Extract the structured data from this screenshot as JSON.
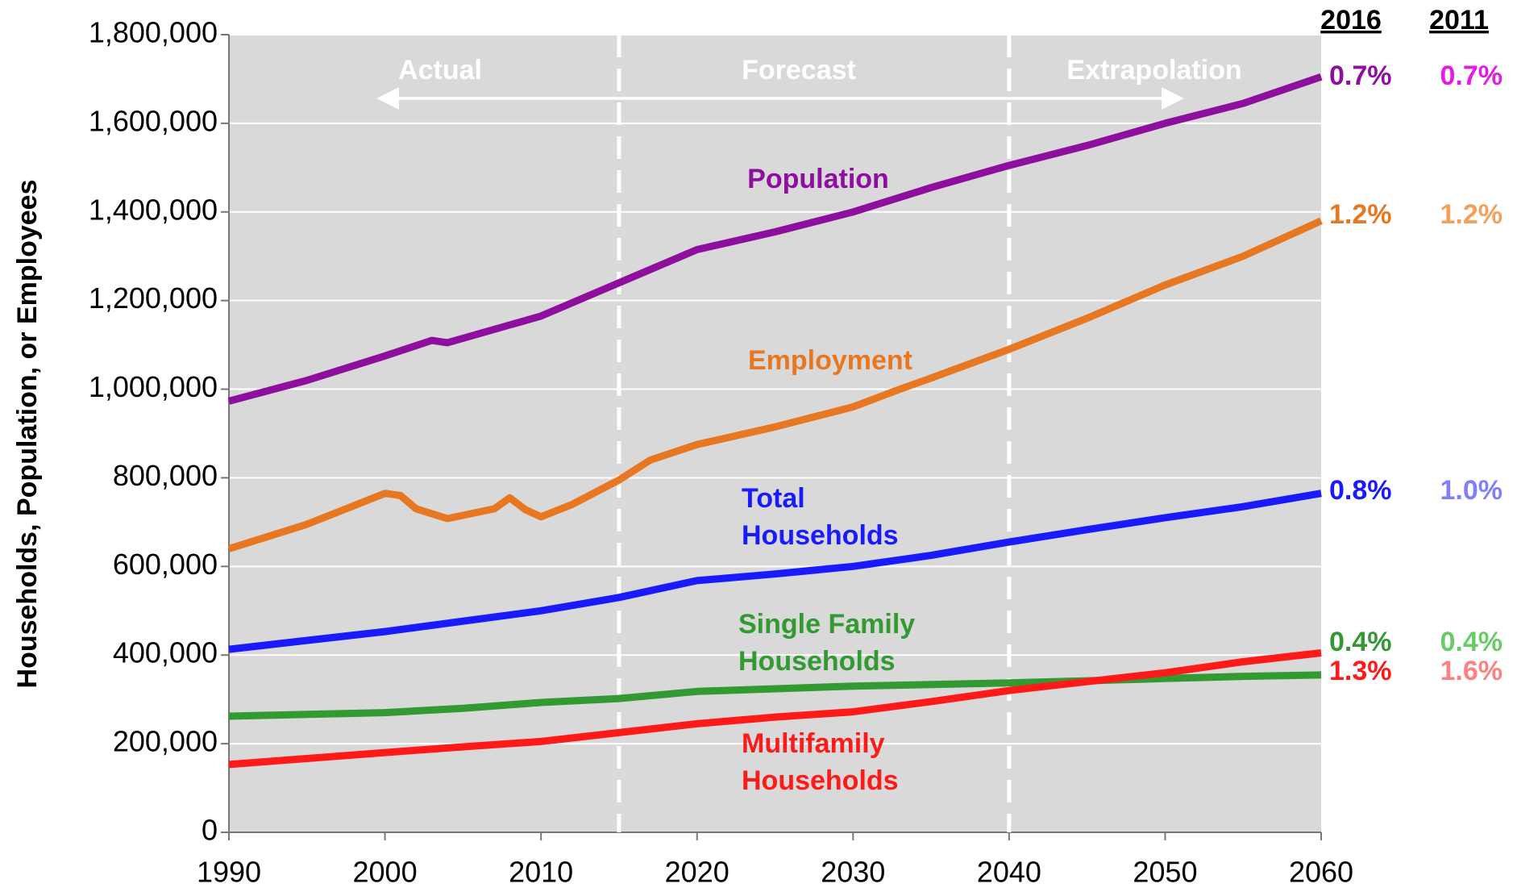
{
  "chart_data": {
    "type": "line",
    "ylabel": "Households, Population, or Employees",
    "xlim": [
      1990,
      2060
    ],
    "xticks": [
      1990,
      2000,
      2010,
      2020,
      2030,
      2040,
      2050,
      2060
    ],
    "ylim": [
      0,
      1800000
    ],
    "yticks": [
      {
        "value": 0,
        "label": "0"
      },
      {
        "value": 200000,
        "label": "200,000"
      },
      {
        "value": 400000,
        "label": "400,000"
      },
      {
        "value": 600000,
        "label": "600,000"
      },
      {
        "value": 800000,
        "label": "800,000"
      },
      {
        "value": 1000000,
        "label": "1,000,000"
      },
      {
        "value": 1200000,
        "label": "1,200,000"
      },
      {
        "value": 1400000,
        "label": "1,400,000"
      },
      {
        "value": 1600000,
        "label": "1,600,000"
      },
      {
        "value": 1800000,
        "label": "1,800,000"
      }
    ],
    "grid": true,
    "dividers": [
      2015,
      2040
    ],
    "periods": [
      "Actual",
      "Forecast",
      "Extrapolation"
    ],
    "rate_headers": [
      "2016",
      "2011"
    ],
    "series": [
      {
        "name": [
          "Population"
        ],
        "color": "#8e0f9e",
        "color_2011": "#e619e6",
        "x": [
          1990,
          1995,
          2000,
          2003,
          2004,
          2005,
          2010,
          2015,
          2020,
          2025,
          2030,
          2035,
          2040,
          2045,
          2050,
          2055,
          2060
        ],
        "values": [
          973000,
          1020000,
          1075000,
          1110000,
          1105000,
          1115000,
          1165000,
          1240000,
          1315000,
          1355000,
          1400000,
          1455000,
          1505000,
          1550000,
          1600000,
          1645000,
          1705000
        ],
        "rate_2016": "0.7%",
        "rate_2011": "0.7%"
      },
      {
        "name": [
          "Employment"
        ],
        "color": "#e87722",
        "color_2011": "#f5a05a",
        "x": [
          1990,
          1995,
          2000,
          2001,
          2002,
          2004,
          2007,
          2008,
          2009,
          2010,
          2012,
          2015,
          2017,
          2020,
          2025,
          2030,
          2033,
          2035,
          2040,
          2045,
          2050,
          2055,
          2060
        ],
        "values": [
          640000,
          695000,
          765000,
          760000,
          730000,
          708000,
          730000,
          755000,
          728000,
          712000,
          740000,
          795000,
          840000,
          875000,
          915000,
          960000,
          1000000,
          1025000,
          1090000,
          1160000,
          1235000,
          1300000,
          1380000
        ],
        "rate_2016": "1.2%",
        "rate_2011": "1.2%"
      },
      {
        "name": [
          "Total",
          "Households"
        ],
        "color": "#1a1aff",
        "color_2011": "#8080ff",
        "x": [
          1990,
          2000,
          2010,
          2015,
          2020,
          2025,
          2030,
          2035,
          2040,
          2045,
          2050,
          2055,
          2060
        ],
        "values": [
          413000,
          453000,
          500000,
          530000,
          568000,
          583000,
          600000,
          625000,
          655000,
          683000,
          710000,
          735000,
          765000
        ],
        "rate_2016": "0.8%",
        "rate_2011": "1.0%"
      },
      {
        "name": [
          "Single Family",
          "Households"
        ],
        "color": "#339933",
        "color_2011": "#66cc66",
        "x": [
          1990,
          2000,
          2005,
          2010,
          2015,
          2020,
          2030,
          2040,
          2045,
          2050,
          2055,
          2060
        ],
        "values": [
          262000,
          270000,
          280000,
          293000,
          302000,
          318000,
          330000,
          337000,
          342000,
          347000,
          352000,
          355000
        ],
        "rate_2016": "0.4%",
        "rate_2011": "0.4%"
      },
      {
        "name": [
          "Multifamily",
          "Households"
        ],
        "color": "#ff1a1a",
        "color_2011": "#ff8080",
        "x": [
          1990,
          2000,
          2005,
          2010,
          2015,
          2020,
          2025,
          2030,
          2035,
          2040,
          2045,
          2050,
          2055,
          2060
        ],
        "values": [
          153000,
          180000,
          193000,
          205000,
          225000,
          245000,
          260000,
          272000,
          295000,
          320000,
          340000,
          360000,
          385000,
          405000
        ],
        "rate_2016": "1.3%",
        "rate_2011": "1.6%"
      }
    ]
  }
}
